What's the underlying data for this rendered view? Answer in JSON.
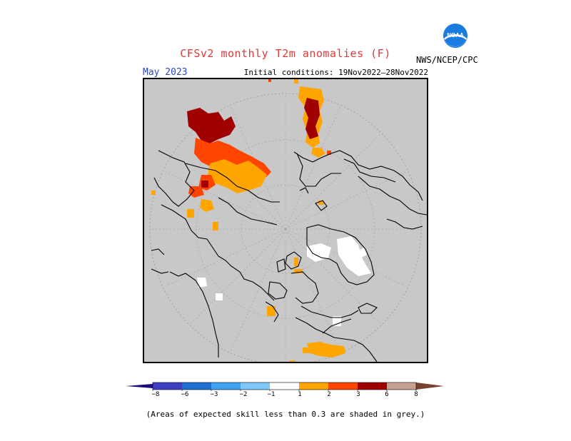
{
  "header": {
    "title": "CFSv2 monthly T2m anomalies (F)",
    "month": "May 2023",
    "initial_conditions": "Initial conditions: 19Nov2022–28Nov2022",
    "agency": "NWS/NCEP/CPC",
    "logo_text": "NOAA"
  },
  "colorbar": {
    "labels": [
      "−8",
      "−6",
      "−3",
      "−2",
      "−1",
      "1",
      "2",
      "3",
      "6",
      "8"
    ],
    "colors": [
      "#1c0b7a",
      "#3f3fc4",
      "#1f6ed4",
      "#3ea2f2",
      "#7fc6fa",
      "#ffffff",
      "#ffa500",
      "#ff4500",
      "#cc1100",
      "#a00000",
      "#c8a090",
      "#7a4030"
    ]
  },
  "footer": {
    "note": "(Areas of expected skill less than 0.3 are shaded in grey.)"
  },
  "map_colors": {
    "low_skill": "#c8c8c8",
    "ocean_ring": "#c8c8c8",
    "coast": "#000000",
    "anom_1_2": "#ffa500",
    "anom_2_3": "#ff4500",
    "anom_3_6": "#a00000",
    "anom_6_8": "#c8a090"
  }
}
